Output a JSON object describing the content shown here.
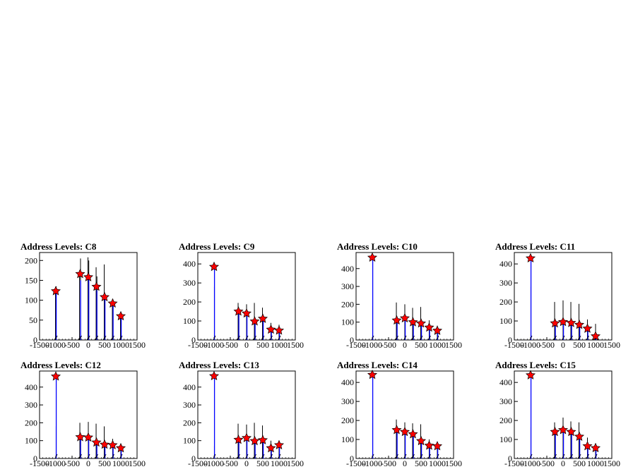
{
  "chart_data": [
    {
      "type": "histogram-peaks",
      "title": "Address Levels: C8",
      "xlim": [
        -1500,
        1500
      ],
      "ylim": [
        0,
        220
      ],
      "xticks": [
        "-1500",
        "-1000",
        "-500",
        "0",
        "500",
        "1000",
        "1500"
      ],
      "yticks": [
        "0",
        "50",
        "100",
        "150",
        "200"
      ],
      "peaks": [
        {
          "x": -1000,
          "y": 123
        },
        {
          "x": -250,
          "y": 166
        },
        {
          "x": 0,
          "y": 158
        },
        {
          "x": 250,
          "y": 134
        },
        {
          "x": 500,
          "y": 108
        },
        {
          "x": 750,
          "y": 92
        },
        {
          "x": 1000,
          "y": 60
        }
      ],
      "spikes": [
        {
          "x": -1010,
          "h": 132,
          "s": 0
        },
        {
          "x": -990,
          "h": 135,
          "s": 0
        },
        {
          "x": -270,
          "h": 175,
          "s": 0
        },
        {
          "x": -240,
          "h": 205,
          "s": 0
        },
        {
          "x": -10,
          "h": 208,
          "s": 0
        },
        {
          "x": 15,
          "h": 200,
          "s": 0
        },
        {
          "x": 240,
          "h": 183,
          "s": 0
        },
        {
          "x": 265,
          "h": 160,
          "s": 0
        },
        {
          "x": 490,
          "h": 190,
          "s": 0
        },
        {
          "x": 740,
          "h": 98,
          "s": 0
        },
        {
          "x": 990,
          "h": 68,
          "s": 0
        },
        {
          "x": -1000,
          "h": 118,
          "s": 1
        },
        {
          "x": -250,
          "h": 150,
          "s": 1
        },
        {
          "x": 0,
          "h": 160,
          "s": 1
        },
        {
          "x": 250,
          "h": 125,
          "s": 1
        },
        {
          "x": 500,
          "h": 112,
          "s": 1
        },
        {
          "x": 750,
          "h": 86,
          "s": 1
        },
        {
          "x": 1000,
          "h": 58,
          "s": 1
        }
      ]
    },
    {
      "type": "histogram-peaks",
      "title": "Address Levels: C9",
      "xlim": [
        -1500,
        1500
      ],
      "ylim": [
        0,
        460
      ],
      "xticks": [
        "-1500",
        "-1000",
        "-500",
        "0",
        "500",
        "1000",
        "1500"
      ],
      "yticks": [
        "0",
        "100",
        "200",
        "300",
        "400"
      ],
      "peaks": [
        {
          "x": -1000,
          "y": 385
        },
        {
          "x": -250,
          "y": 150
        },
        {
          "x": 0,
          "y": 140
        },
        {
          "x": 250,
          "y": 98
        },
        {
          "x": 500,
          "y": 112
        },
        {
          "x": 750,
          "y": 55
        },
        {
          "x": 1000,
          "y": 50
        }
      ],
      "spikes": [
        {
          "x": -990,
          "h": 280,
          "s": 0
        },
        {
          "x": -260,
          "h": 195,
          "s": 0
        },
        {
          "x": 0,
          "h": 188,
          "s": 0
        },
        {
          "x": 240,
          "h": 195,
          "s": 0
        },
        {
          "x": 490,
          "h": 170,
          "s": 0
        },
        {
          "x": 750,
          "h": 90,
          "s": 0
        },
        {
          "x": 1000,
          "h": 80,
          "s": 0
        },
        {
          "x": -1000,
          "h": 380,
          "s": 1
        },
        {
          "x": -250,
          "h": 140,
          "s": 1
        },
        {
          "x": 0,
          "h": 130,
          "s": 1
        },
        {
          "x": 250,
          "h": 92,
          "s": 1
        },
        {
          "x": 500,
          "h": 105,
          "s": 1
        },
        {
          "x": 750,
          "h": 50,
          "s": 1
        },
        {
          "x": 1000,
          "h": 45,
          "s": 1
        }
      ]
    },
    {
      "type": "histogram-peaks",
      "title": "Address Levels: C10",
      "xlim": [
        -1500,
        1500
      ],
      "ylim": [
        0,
        490
      ],
      "xticks": [
        "-1500",
        "-1000",
        "-500",
        "0",
        "500",
        "1000",
        "1500"
      ],
      "yticks": [
        "0",
        "100",
        "200",
        "300",
        "400"
      ],
      "peaks": [
        {
          "x": -1000,
          "y": 462
        },
        {
          "x": -250,
          "y": 110
        },
        {
          "x": 0,
          "y": 122
        },
        {
          "x": 250,
          "y": 100
        },
        {
          "x": 500,
          "y": 93
        },
        {
          "x": 750,
          "y": 70
        },
        {
          "x": 1000,
          "y": 52
        }
      ],
      "spikes": [
        {
          "x": -990,
          "h": 190,
          "s": 0
        },
        {
          "x": -260,
          "h": 210,
          "s": 0
        },
        {
          "x": 0,
          "h": 200,
          "s": 0
        },
        {
          "x": 240,
          "h": 180,
          "s": 0
        },
        {
          "x": 490,
          "h": 185,
          "s": 0
        },
        {
          "x": 750,
          "h": 110,
          "s": 0
        },
        {
          "x": 1000,
          "h": 80,
          "s": 0
        },
        {
          "x": -1000,
          "h": 455,
          "s": 1
        },
        {
          "x": -250,
          "h": 105,
          "s": 1
        },
        {
          "x": 0,
          "h": 118,
          "s": 1
        },
        {
          "x": 250,
          "h": 95,
          "s": 1
        },
        {
          "x": 500,
          "h": 88,
          "s": 1
        },
        {
          "x": 750,
          "h": 65,
          "s": 1
        },
        {
          "x": 1000,
          "h": 48,
          "s": 1
        }
      ]
    },
    {
      "type": "histogram-peaks",
      "title": "Address Levels: C11",
      "xlim": [
        -1500,
        1500
      ],
      "ylim": [
        0,
        460
      ],
      "xticks": [
        "-1500",
        "-1000",
        "-500",
        "0",
        "500",
        "1000",
        "1500"
      ],
      "yticks": [
        "0",
        "100",
        "200",
        "300",
        "400"
      ],
      "peaks": [
        {
          "x": -1000,
          "y": 430
        },
        {
          "x": -250,
          "y": 88
        },
        {
          "x": 0,
          "y": 95
        },
        {
          "x": 250,
          "y": 90
        },
        {
          "x": 500,
          "y": 80
        },
        {
          "x": 750,
          "y": 60
        },
        {
          "x": 1000,
          "y": 20
        }
      ],
      "spikes": [
        {
          "x": -990,
          "h": 280,
          "s": 0
        },
        {
          "x": -260,
          "h": 200,
          "s": 0
        },
        {
          "x": 0,
          "h": 208,
          "s": 0
        },
        {
          "x": 240,
          "h": 200,
          "s": 0
        },
        {
          "x": 490,
          "h": 190,
          "s": 0
        },
        {
          "x": 750,
          "h": 108,
          "s": 0
        },
        {
          "x": 1000,
          "h": 85,
          "s": 0
        },
        {
          "x": -1000,
          "h": 425,
          "s": 1
        },
        {
          "x": -250,
          "h": 82,
          "s": 1
        },
        {
          "x": 0,
          "h": 90,
          "s": 1
        },
        {
          "x": 250,
          "h": 85,
          "s": 1
        },
        {
          "x": 500,
          "h": 75,
          "s": 1
        },
        {
          "x": 750,
          "h": 55,
          "s": 1
        },
        {
          "x": 1000,
          "h": 18,
          "s": 1
        }
      ]
    },
    {
      "type": "histogram-peaks",
      "title": "Address Levels: C12",
      "xlim": [
        -1500,
        1500
      ],
      "ylim": [
        0,
        490
      ],
      "xticks": [
        "-1500",
        "-1000",
        "-500",
        "0",
        "500",
        "1000",
        "1500"
      ],
      "yticks": [
        "0",
        "100",
        "200",
        "300",
        "400"
      ],
      "peaks": [
        {
          "x": -1000,
          "y": 460
        },
        {
          "x": -250,
          "y": 120
        },
        {
          "x": 0,
          "y": 118
        },
        {
          "x": 250,
          "y": 90
        },
        {
          "x": 500,
          "y": 78
        },
        {
          "x": 750,
          "y": 75
        },
        {
          "x": 1000,
          "y": 58
        }
      ],
      "spikes": [
        {
          "x": -990,
          "h": 180,
          "s": 0
        },
        {
          "x": -260,
          "h": 200,
          "s": 0
        },
        {
          "x": 0,
          "h": 205,
          "s": 0
        },
        {
          "x": 240,
          "h": 195,
          "s": 0
        },
        {
          "x": 490,
          "h": 180,
          "s": 0
        },
        {
          "x": 750,
          "h": 110,
          "s": 0
        },
        {
          "x": 1000,
          "h": 80,
          "s": 0
        },
        {
          "x": -1000,
          "h": 455,
          "s": 1
        },
        {
          "x": -250,
          "h": 112,
          "s": 1
        },
        {
          "x": 0,
          "h": 110,
          "s": 1
        },
        {
          "x": 250,
          "h": 85,
          "s": 1
        },
        {
          "x": 500,
          "h": 72,
          "s": 1
        },
        {
          "x": 750,
          "h": 70,
          "s": 1
        },
        {
          "x": 1000,
          "h": 52,
          "s": 1
        }
      ]
    },
    {
      "type": "histogram-peaks",
      "title": "Address Levels: C13",
      "xlim": [
        -1500,
        1500
      ],
      "ylim": [
        0,
        490
      ],
      "xticks": [
        "-1500",
        "-1000",
        "-500",
        "0",
        "500",
        "1000",
        "1500"
      ],
      "yticks": [
        "0",
        "100",
        "200",
        "300",
        "400"
      ],
      "peaks": [
        {
          "x": -1000,
          "y": 462
        },
        {
          "x": -250,
          "y": 105
        },
        {
          "x": 0,
          "y": 115
        },
        {
          "x": 250,
          "y": 98
        },
        {
          "x": 500,
          "y": 103
        },
        {
          "x": 750,
          "y": 58
        },
        {
          "x": 1000,
          "y": 75
        }
      ],
      "spikes": [
        {
          "x": -990,
          "h": 70,
          "s": 0
        },
        {
          "x": -260,
          "h": 195,
          "s": 0
        },
        {
          "x": 0,
          "h": 190,
          "s": 0
        },
        {
          "x": 240,
          "h": 200,
          "s": 0
        },
        {
          "x": 490,
          "h": 185,
          "s": 0
        },
        {
          "x": 750,
          "h": 100,
          "s": 0
        },
        {
          "x": 1000,
          "h": 85,
          "s": 0
        },
        {
          "x": -1000,
          "h": 460,
          "s": 1
        },
        {
          "x": -250,
          "h": 100,
          "s": 1
        },
        {
          "x": 0,
          "h": 110,
          "s": 1
        },
        {
          "x": 250,
          "h": 92,
          "s": 1
        },
        {
          "x": 500,
          "h": 98,
          "s": 1
        },
        {
          "x": 750,
          "h": 52,
          "s": 1
        },
        {
          "x": 1000,
          "h": 70,
          "s": 1
        }
      ]
    },
    {
      "type": "histogram-peaks",
      "title": "Address Levels: C14",
      "xlim": [
        -1500,
        1500
      ],
      "ylim": [
        0,
        460
      ],
      "xticks": [
        "-1500",
        "-1000",
        "-500",
        "0",
        "500",
        "1000",
        "1500"
      ],
      "yticks": [
        "0",
        "100",
        "200",
        "300",
        "400"
      ],
      "peaks": [
        {
          "x": -1000,
          "y": 440
        },
        {
          "x": -250,
          "y": 150
        },
        {
          "x": 0,
          "y": 140
        },
        {
          "x": 250,
          "y": 128
        },
        {
          "x": 500,
          "y": 92
        },
        {
          "x": 750,
          "y": 68
        },
        {
          "x": 1000,
          "y": 65
        }
      ],
      "spikes": [
        {
          "x": -990,
          "h": 185,
          "s": 0
        },
        {
          "x": -260,
          "h": 205,
          "s": 0
        },
        {
          "x": 0,
          "h": 190,
          "s": 0
        },
        {
          "x": 240,
          "h": 185,
          "s": 0
        },
        {
          "x": 490,
          "h": 180,
          "s": 0
        },
        {
          "x": 750,
          "h": 100,
          "s": 0
        },
        {
          "x": 1000,
          "h": 80,
          "s": 0
        },
        {
          "x": -1000,
          "h": 435,
          "s": 1
        },
        {
          "x": -250,
          "h": 140,
          "s": 1
        },
        {
          "x": 0,
          "h": 132,
          "s": 1
        },
        {
          "x": 250,
          "h": 122,
          "s": 1
        },
        {
          "x": 500,
          "h": 88,
          "s": 1
        },
        {
          "x": 750,
          "h": 62,
          "s": 1
        },
        {
          "x": 1000,
          "h": 60,
          "s": 1
        }
      ]
    },
    {
      "type": "histogram-peaks",
      "title": "Address Levels: C15",
      "xlim": [
        -1500,
        1500
      ],
      "ylim": [
        0,
        460
      ],
      "xticks": [
        "-1500",
        "-1000",
        "-500",
        "0",
        "500",
        "1000",
        "1500"
      ],
      "yticks": [
        "0",
        "100",
        "200",
        "300",
        "400"
      ],
      "peaks": [
        {
          "x": -1000,
          "y": 438
        },
        {
          "x": -250,
          "y": 140
        },
        {
          "x": 0,
          "y": 150
        },
        {
          "x": 250,
          "y": 140
        },
        {
          "x": 500,
          "y": 115
        },
        {
          "x": 750,
          "y": 65
        },
        {
          "x": 1000,
          "y": 55
        }
      ],
      "spikes": [
        {
          "x": -990,
          "h": 165,
          "s": 0
        },
        {
          "x": -260,
          "h": 190,
          "s": 0
        },
        {
          "x": 0,
          "h": 215,
          "s": 0
        },
        {
          "x": 240,
          "h": 195,
          "s": 0
        },
        {
          "x": 490,
          "h": 190,
          "s": 0
        },
        {
          "x": 750,
          "h": 110,
          "s": 0
        },
        {
          "x": 1000,
          "h": 80,
          "s": 0
        },
        {
          "x": -1000,
          "h": 432,
          "s": 1
        },
        {
          "x": -250,
          "h": 132,
          "s": 1
        },
        {
          "x": 0,
          "h": 145,
          "s": 1
        },
        {
          "x": 250,
          "h": 132,
          "s": 1
        },
        {
          "x": 500,
          "h": 108,
          "s": 1
        },
        {
          "x": 750,
          "h": 60,
          "s": 1
        },
        {
          "x": 1000,
          "h": 50,
          "s": 1
        }
      ]
    }
  ],
  "colors": {
    "primary_series": "#000000",
    "secondary_series": "#0000ff",
    "marker": "#ff0000"
  }
}
